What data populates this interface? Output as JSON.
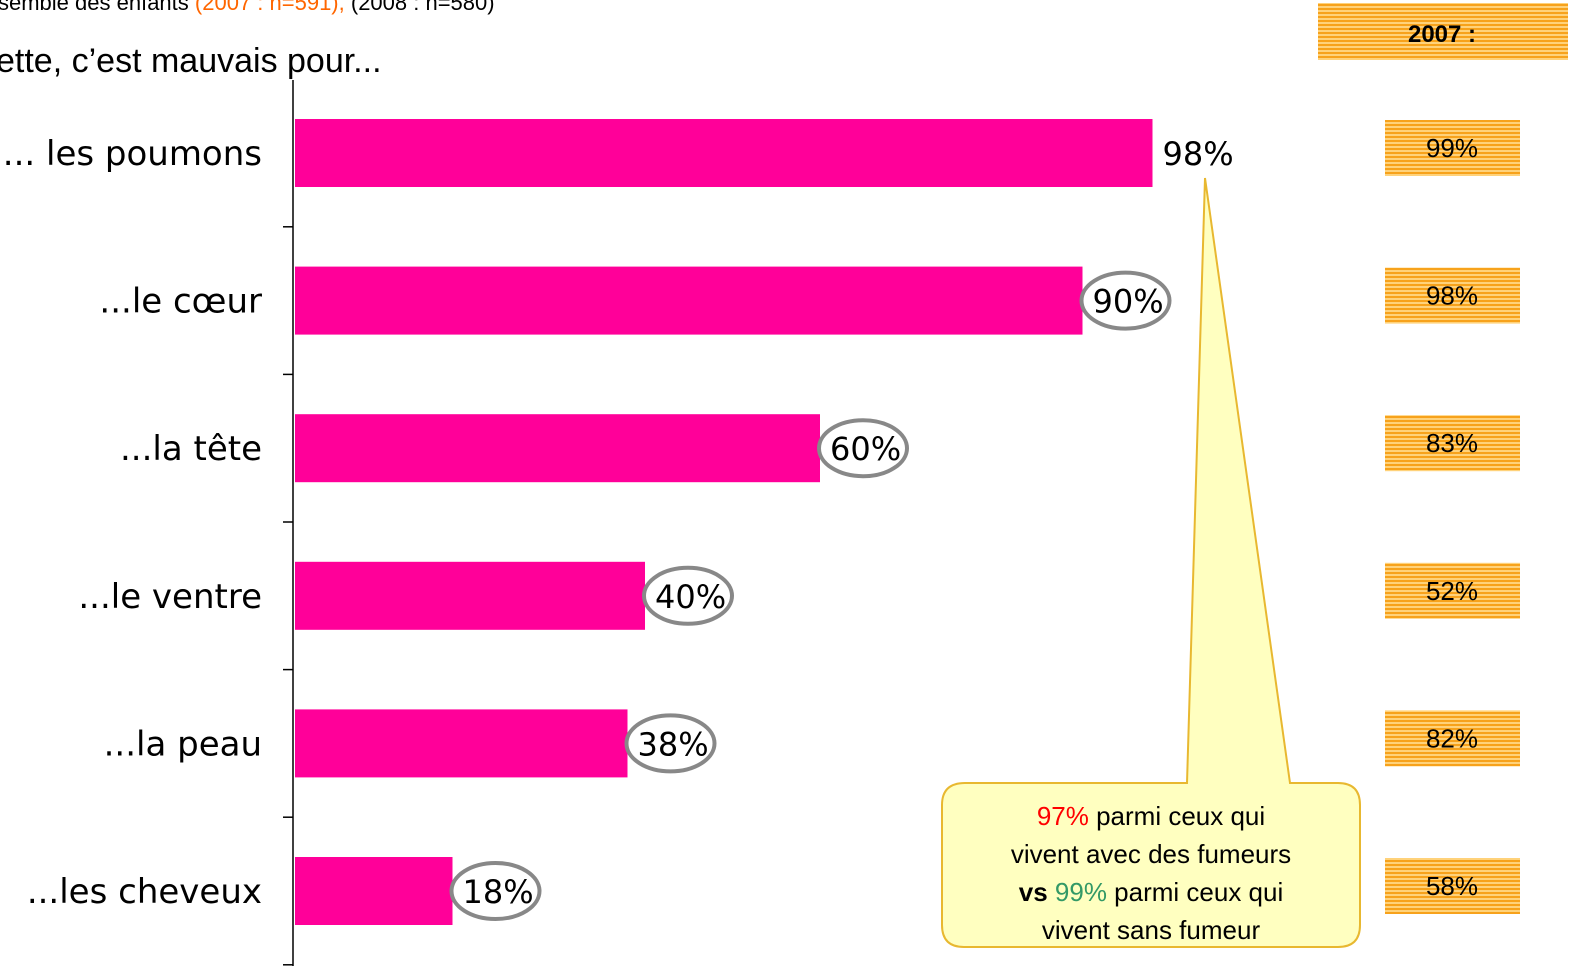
{
  "chart_data": {
    "type": "bar",
    "orientation": "horizontal",
    "header": [
      {
        "text": "semble des enfants ",
        "color": "#000000",
        "bold": false
      },
      {
        "text": "(2007 : n=591),",
        "color": "#ff6600",
        "bold": false
      },
      {
        "text": " (2008 : n=580)",
        "color": "#000000",
        "bold": false
      }
    ],
    "subtitle": "ette, c’est mauvais pour...",
    "categories": [
      "... les poumons",
      "...le cœur",
      "...la tête",
      "...le ventre",
      "...la peau",
      "...les cheveux"
    ],
    "values": [
      98,
      90,
      60,
      40,
      38,
      18
    ],
    "value_labels": [
      "98%",
      "90%",
      "60%",
      "40%",
      "38%",
      "18%"
    ],
    "color": "#ff0099",
    "xlim": [
      0,
      100
    ],
    "comparison": {
      "title": "2007 :",
      "values": [
        99,
        98,
        83,
        52,
        82,
        58
      ],
      "value_labels": [
        "99%",
        "98%",
        "83%",
        "52%",
        "82%",
        "58%"
      ],
      "color": "#f7a21b"
    },
    "callout": {
      "lines": [
        [
          {
            "text": "97%",
            "color": "#ff0000",
            "bold": false
          },
          {
            "text": " parmi ceux qui",
            "color": "#000000",
            "bold": false
          }
        ],
        [
          {
            "text": "vivent avec des fumeurs",
            "color": "#000000",
            "bold": false
          }
        ],
        [
          {
            "text": "vs",
            "color": "#000000",
            "bold": true
          },
          {
            "text": " 99%",
            "color": "#339966",
            "bold": false
          },
          {
            "text": " parmi ceux qui",
            "color": "#000000",
            "bold": false
          }
        ],
        [
          {
            "text": "vivent sans fumeur",
            "color": "#000000",
            "bold": false
          }
        ]
      ]
    }
  }
}
